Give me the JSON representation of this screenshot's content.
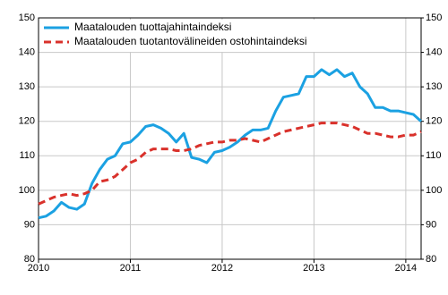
{
  "chart_data": {
    "type": "line",
    "x": [
      2010,
      2010.083,
      2010.167,
      2010.25,
      2010.333,
      2010.417,
      2010.5,
      2010.583,
      2010.667,
      2010.75,
      2010.833,
      2010.917,
      2011,
      2011.083,
      2011.167,
      2011.25,
      2011.333,
      2011.417,
      2011.5,
      2011.583,
      2011.667,
      2011.75,
      2011.833,
      2011.917,
      2012,
      2012.083,
      2012.167,
      2012.25,
      2012.333,
      2012.417,
      2012.5,
      2012.583,
      2012.667,
      2012.75,
      2012.833,
      2012.917,
      2013,
      2013.083,
      2013.167,
      2013.25,
      2013.333,
      2013.417,
      2013.5,
      2013.583,
      2013.667,
      2013.75,
      2013.833,
      2013.917,
      2014,
      2014.083,
      2014.167
    ],
    "series": [
      {
        "name": "Maatalouden tuottajahintaindeksi",
        "color": "#1ba1e2",
        "dash": false,
        "values": [
          92,
          92.5,
          94,
          96.5,
          95,
          94.5,
          96,
          102,
          106,
          109,
          110,
          113.5,
          114,
          116,
          118.5,
          119,
          118,
          116.5,
          114,
          116.5,
          109.5,
          109,
          108,
          111,
          111.5,
          112.5,
          114,
          116,
          117.5,
          117.5,
          118,
          123,
          127,
          127.5,
          128,
          133,
          133,
          135,
          133.5,
          135,
          133,
          134,
          130,
          128,
          124,
          124,
          123,
          123,
          122.5,
          122,
          120
        ]
      },
      {
        "name": "Maatalouden tuotantovälineiden ostohintaindeksi",
        "color": "#d9312b",
        "dash": true,
        "values": [
          96,
          97,
          98,
          98.5,
          99,
          98.5,
          99,
          100,
          102.5,
          103,
          104,
          106,
          108,
          109,
          111,
          112,
          112,
          112,
          111.5,
          111.5,
          112,
          113,
          113.5,
          114,
          114,
          114.5,
          114.5,
          115,
          114.5,
          114,
          115,
          116,
          117,
          117.5,
          118,
          118.5,
          119,
          119.5,
          119.5,
          119.5,
          119,
          118.5,
          117.5,
          116.5,
          116.5,
          116,
          115.5,
          115.5,
          116,
          116,
          117
        ]
      }
    ],
    "xlim": [
      2010,
      2014.167
    ],
    "xticks": [
      2010,
      2011,
      2012,
      2013,
      2014
    ],
    "ylim": [
      80,
      150
    ],
    "yticks": [
      80,
      90,
      100,
      110,
      120,
      130,
      140,
      150
    ],
    "y2lim": [
      80,
      150
    ],
    "y2ticks": [
      80,
      90,
      100,
      110,
      120,
      130,
      140,
      150
    ],
    "grid": true,
    "legend": "top-left"
  }
}
